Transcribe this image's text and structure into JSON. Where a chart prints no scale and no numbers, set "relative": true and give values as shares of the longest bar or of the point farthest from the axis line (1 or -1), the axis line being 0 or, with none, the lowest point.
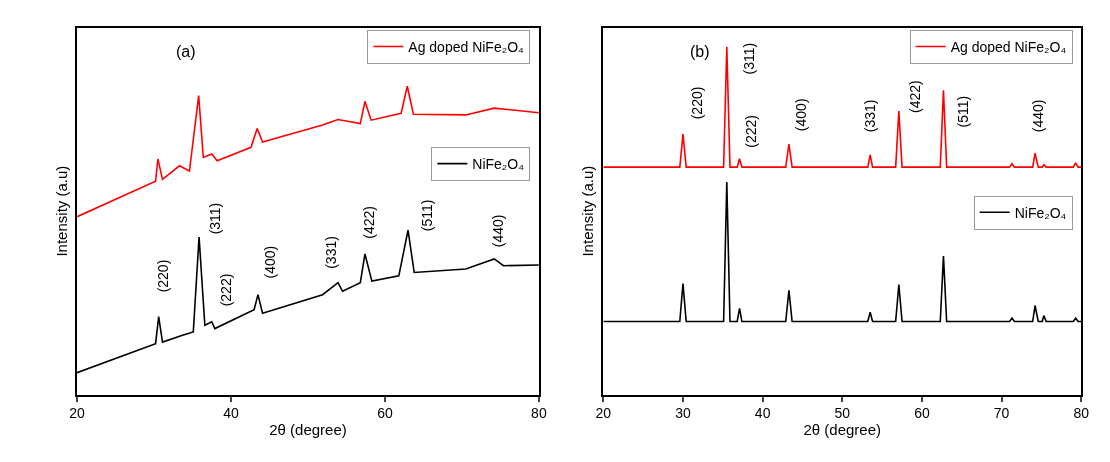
{
  "chart_data": [
    {
      "type": "line",
      "relative": true,
      "xlabel": "2θ (degree)",
      "ylabel": "Intensity (a.u)",
      "xlim": [
        20,
        80
      ],
      "xticks": [
        20,
        40,
        60,
        80
      ],
      "tick_labels": "x",
      "legend": "top right",
      "series": [
        {
          "name": "Ag doped NiFe₂O₄",
          "color": "#ff0000",
          "x": [
            20,
            30.2,
            30.5,
            31.1,
            33.3,
            34.6,
            35.8,
            36.4,
            37.5,
            38.2,
            42.6,
            43.4,
            44.1,
            51.9,
            53.9,
            56.8,
            57.4,
            58.2,
            62.1,
            62.9,
            63.7,
            70.5,
            74.2,
            80
          ],
          "values": [
            0.577,
            0.692,
            0.764,
            0.698,
            0.742,
            0.725,
            0.97,
            0.769,
            0.78,
            0.758,
            0.802,
            0.863,
            0.819,
            0.874,
            0.892,
            0.879,
            0.951,
            0.89,
            0.912,
            1.0,
            0.909,
            0.907,
            0.929,
            0.914
          ]
        },
        {
          "name": "NiFe₂O₄",
          "color": "#000000",
          "x": [
            20,
            30.2,
            30.6,
            31.1,
            33.7,
            35.1,
            35.85,
            36.6,
            37.5,
            37.9,
            43.0,
            43.5,
            44.1,
            51.9,
            53.9,
            54.5,
            56.8,
            57.4,
            58.3,
            61.8,
            63.0,
            63.8,
            70.5,
            74.2,
            75.4,
            80
          ],
          "values": [
            0.071,
            0.165,
            0.253,
            0.17,
            0.192,
            0.203,
            0.511,
            0.225,
            0.236,
            0.214,
            0.275,
            0.324,
            0.264,
            0.324,
            0.363,
            0.335,
            0.363,
            0.456,
            0.368,
            0.385,
            0.533,
            0.396,
            0.407,
            0.44,
            0.418,
            0.42
          ]
        }
      ],
      "annotations": [
        "(a)",
        "(220)",
        "(311)",
        "(222)",
        "(400)",
        "(331)",
        "(422)",
        "(511)",
        "(440)"
      ]
    },
    {
      "type": "line",
      "relative": true,
      "xlabel": "2θ (degree)",
      "ylabel": "Intensity (a.u)",
      "xlim": [
        20,
        80
      ],
      "xticks": [
        20,
        30,
        40,
        50,
        60,
        70,
        80
      ],
      "tick_labels": "x",
      "legend": "top right",
      "series": [
        {
          "name": "Ag doped NiFe₂O₄",
          "color": "#ff0000",
          "x": [
            20,
            29.6,
            30.0,
            30.4,
            35.1,
            35.5,
            35.9,
            36.8,
            37.1,
            37.4,
            42.9,
            43.3,
            43.7,
            53.2,
            53.5,
            53.8,
            56.7,
            57.1,
            57.5,
            62.3,
            62.7,
            63.1,
            71.0,
            71.3,
            71.6,
            73.9,
            74.2,
            74.6,
            75.1,
            75.3,
            75.6,
            79.0,
            79.3,
            79.6,
            80
          ],
          "values": [
            0.654,
            0.654,
            0.749,
            0.654,
            0.654,
            1.0,
            0.654,
            0.654,
            0.678,
            0.654,
            0.654,
            0.72,
            0.654,
            0.654,
            0.689,
            0.654,
            0.654,
            0.815,
            0.654,
            0.654,
            0.875,
            0.654,
            0.654,
            0.664,
            0.654,
            0.654,
            0.694,
            0.654,
            0.654,
            0.661,
            0.654,
            0.654,
            0.666,
            0.654,
            0.654
          ]
        },
        {
          "name": "NiFe₂O₄",
          "color": "#000000",
          "x": [
            20,
            29.6,
            30.0,
            30.4,
            35.1,
            35.5,
            35.9,
            36.8,
            37.1,
            37.4,
            42.9,
            43.3,
            43.7,
            53.2,
            53.5,
            53.8,
            56.7,
            57.1,
            57.5,
            62.3,
            62.7,
            63.1,
            71.0,
            71.3,
            71.6,
            73.9,
            74.2,
            74.6,
            75.1,
            75.3,
            75.6,
            79.0,
            79.3,
            79.6,
            80
          ],
          "values": [
            0.21,
            0.21,
            0.319,
            0.21,
            0.21,
            0.611,
            0.21,
            0.21,
            0.248,
            0.21,
            0.21,
            0.3,
            0.21,
            0.21,
            0.237,
            0.21,
            0.21,
            0.316,
            0.21,
            0.21,
            0.398,
            0.21,
            0.21,
            0.22,
            0.21,
            0.21,
            0.256,
            0.21,
            0.21,
            0.227,
            0.21,
            0.21,
            0.22,
            0.21,
            0.21
          ]
        }
      ],
      "annotations": [
        "(b)",
        "(220)",
        "(311)",
        "(222)",
        "(400)",
        "(331)",
        "(422)",
        "(511)",
        "(440)"
      ]
    }
  ]
}
